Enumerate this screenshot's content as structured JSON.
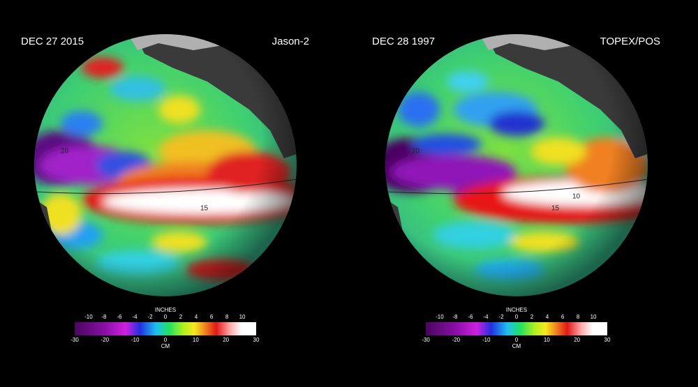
{
  "panels": [
    {
      "date": "DEC 27  2015",
      "satellite": "Jason-2",
      "contour_labels": [
        "20",
        "15"
      ],
      "colorbar": {
        "top_label": "INCHES",
        "top_ticks": [
          -10,
          -8,
          -6,
          -4,
          -2,
          0,
          2,
          4,
          6,
          8,
          10
        ],
        "bottom_label": "CM",
        "bottom_ticks": [
          -30,
          -20,
          -10,
          0,
          10,
          20,
          30
        ]
      }
    },
    {
      "date": "DEC 28  1997",
      "satellite": "TOPEX/POS",
      "contour_labels": [
        "20",
        "15",
        "10"
      ],
      "colorbar": {
        "top_label": "INCHES",
        "top_ticks": [
          -10,
          -8,
          -6,
          -4,
          -2,
          0,
          2,
          4,
          6,
          8,
          10
        ],
        "bottom_label": "CM",
        "bottom_ticks": [
          -30,
          -20,
          -10,
          0,
          10,
          20,
          30
        ]
      }
    }
  ]
}
